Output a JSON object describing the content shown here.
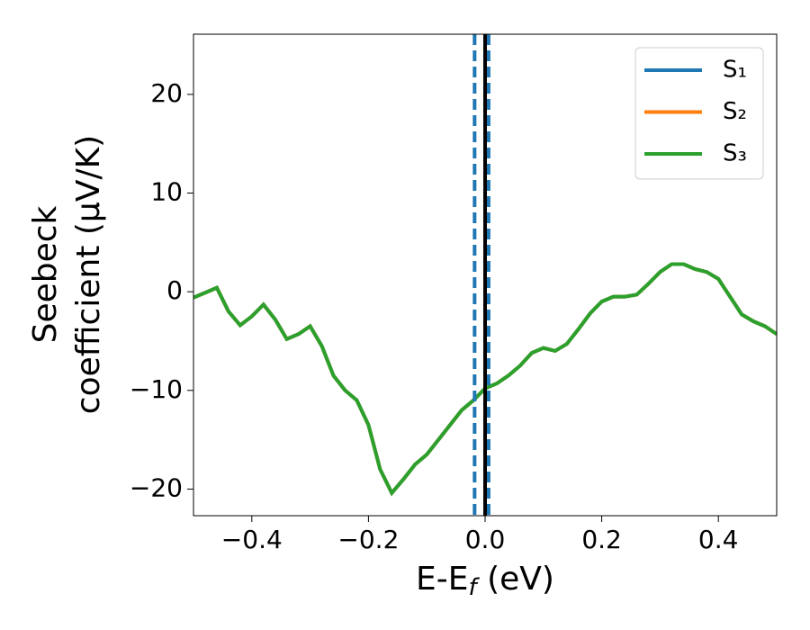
{
  "chart_data": {
    "type": "line",
    "xlabel": [
      "E-E",
      "f",
      " (eV)"
    ],
    "ylabel": [
      "Seebeck",
      "coefficient  (μV/K)"
    ],
    "x": [
      -0.5,
      -0.48,
      -0.46,
      -0.44,
      -0.42,
      -0.4,
      -0.38,
      -0.36,
      -0.34,
      -0.32,
      -0.3,
      -0.28,
      -0.26,
      -0.24,
      -0.22,
      -0.2,
      -0.18,
      -0.16,
      -0.14,
      -0.12,
      -0.1,
      -0.08,
      -0.06,
      -0.04,
      -0.02,
      0,
      0.02,
      0.04,
      0.06,
      0.08,
      0.1,
      0.12,
      0.14,
      0.16,
      0.18,
      0.2,
      0.22,
      0.24,
      0.26,
      0.28,
      0.3,
      0.32,
      0.34,
      0.36,
      0.38,
      0.4,
      0.42,
      0.44,
      0.46,
      0.48,
      0.5
    ],
    "series": [
      {
        "name": "S₁",
        "color": "#1f77b4",
        "values": [
          -0.6,
          -0.1,
          0.4,
          -2.0,
          -3.4,
          -2.5,
          -1.3,
          -2.8,
          -4.8,
          -4.3,
          -3.5,
          -5.5,
          -8.5,
          -10.0,
          -11.0,
          -13.5,
          -18.0,
          -20.4,
          -19.0,
          -17.5,
          -16.5,
          -15.0,
          -13.5,
          -12.0,
          -11.0,
          -9.8,
          -9.3,
          -8.5,
          -7.5,
          -6.2,
          -5.7,
          -6.0,
          -5.3,
          -3.8,
          -2.2,
          -1.0,
          -0.5,
          -0.5,
          -0.3,
          0.8,
          2.0,
          2.8,
          2.8,
          2.3,
          2.0,
          1.3,
          -0.5,
          -2.3,
          -3.0,
          -3.5,
          -4.3
        ]
      },
      {
        "name": "S₂",
        "color": "#ff7f0e",
        "values": [
          -0.6,
          -0.1,
          0.4,
          -2.0,
          -3.4,
          -2.5,
          -1.3,
          -2.8,
          -4.8,
          -4.3,
          -3.5,
          -5.5,
          -8.5,
          -10.0,
          -11.0,
          -13.5,
          -18.0,
          -20.4,
          -19.0,
          -17.5,
          -16.5,
          -15.0,
          -13.5,
          -12.0,
          -11.0,
          -9.8,
          -9.3,
          -8.5,
          -7.5,
          -6.2,
          -5.7,
          -6.0,
          -5.3,
          -3.8,
          -2.2,
          -1.0,
          -0.5,
          -0.5,
          -0.3,
          0.8,
          2.0,
          2.8,
          2.8,
          2.3,
          2.0,
          1.3,
          -0.5,
          -2.3,
          -3.0,
          -3.5,
          -4.3
        ]
      },
      {
        "name": "S₃",
        "color": "#2ca02c",
        "values": [
          -0.6,
          -0.1,
          0.4,
          -2.0,
          -3.4,
          -2.5,
          -1.3,
          -2.8,
          -4.8,
          -4.3,
          -3.5,
          -5.5,
          -8.5,
          -10.0,
          -11.0,
          -13.5,
          -18.0,
          -20.4,
          -19.0,
          -17.5,
          -16.5,
          -15.0,
          -13.5,
          -12.0,
          -11.0,
          -9.8,
          -9.3,
          -8.5,
          -7.5,
          -6.2,
          -5.7,
          -6.0,
          -5.3,
          -3.8,
          -2.2,
          -1.0,
          -0.5,
          -0.5,
          -0.3,
          0.8,
          2.0,
          2.8,
          2.8,
          2.3,
          2.0,
          1.3,
          -0.5,
          -2.3,
          -3.0,
          -3.5,
          -4.3
        ]
      }
    ],
    "vlines": [
      {
        "x": -0.018,
        "color": "#1f77b4",
        "style": "dashed"
      },
      {
        "x": 0.006,
        "color": "#1f77b4",
        "style": "dashed"
      },
      {
        "x": 0,
        "color": "#000000",
        "style": "solid"
      }
    ],
    "xlim": [
      -0.5,
      0.5
    ],
    "ylim": [
      -22.7,
      26.1
    ],
    "xticks": [
      {
        "value": -0.4,
        "label": "−0.4"
      },
      {
        "value": -0.2,
        "label": "−0.2"
      },
      {
        "value": 0,
        "label": "0.0"
      },
      {
        "value": 0.2,
        "label": "0.2"
      },
      {
        "value": 0.4,
        "label": "0.4"
      }
    ],
    "yticks": [
      {
        "value": -20,
        "label": "−20"
      },
      {
        "value": -10,
        "label": "−10"
      },
      0,
      10,
      20
    ],
    "legend": "upper right"
  }
}
